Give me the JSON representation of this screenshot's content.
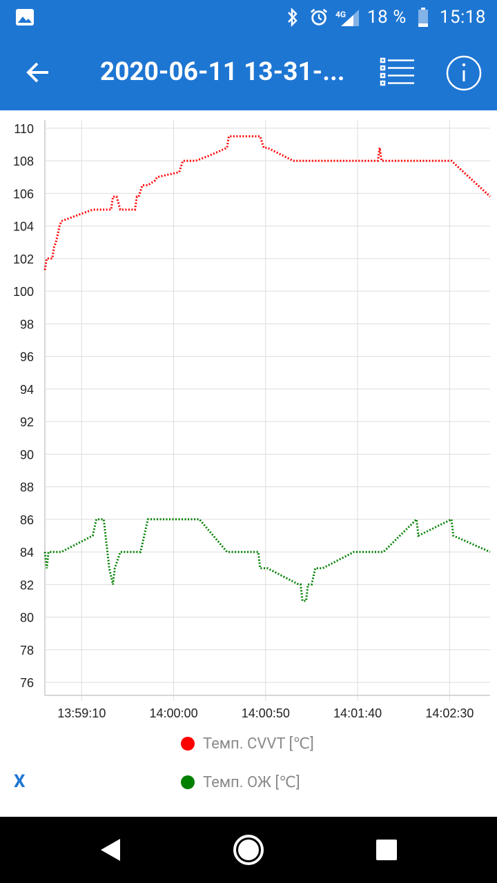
{
  "status_bar": {
    "network": "4G",
    "battery": "18 %",
    "time": "15:18"
  },
  "app_bar": {
    "title": "2020-06-11 13-31-..."
  },
  "chart_data": {
    "type": "line",
    "y_ticks": [
      "110",
      "108",
      "106",
      "104",
      "102",
      "100",
      "98",
      "96",
      "94",
      "92",
      "90",
      "88",
      "86",
      "84",
      "82",
      "80",
      "78",
      "76"
    ],
    "x_ticks": [
      "13:59:10",
      "14:00:00",
      "14:00:50",
      "14:01:40",
      "14:02:30"
    ],
    "ylim": [
      75.2,
      110.5
    ],
    "x_unit": "seconds from 13:58:50",
    "xlim": [
      0,
      242
    ],
    "grid": true,
    "series": [
      {
        "name": "Темп. CVVT [℃]",
        "color": "#ff0000",
        "x": [
          0,
          1,
          2,
          4,
          5,
          6,
          7,
          8,
          9,
          26,
          36,
          37,
          39,
          41,
          49,
          50,
          51,
          53,
          55,
          56,
          60,
          61,
          73,
          75,
          79,
          81,
          82,
          89,
          99,
          100,
          101,
          117,
          119,
          121,
          135,
          136,
          150,
          177,
          181,
          182,
          183,
          184,
          185,
          220,
          221,
          242
        ],
        "y": [
          101.3,
          102.0,
          102.0,
          102.0,
          102.7,
          103.0,
          103.5,
          104.0,
          104.3,
          105.0,
          105.0,
          105.8,
          105.8,
          105.0,
          105.0,
          105.8,
          105.8,
          106.5,
          106.5,
          106.5,
          106.8,
          107.0,
          107.3,
          108.0,
          108.0,
          108.0,
          108.0,
          108.3,
          108.8,
          109.5,
          109.5,
          109.5,
          108.8,
          108.8,
          108.0,
          108.0,
          108.0,
          108.0,
          108.0,
          108.8,
          108.0,
          108.0,
          108.0,
          108.0,
          108.0,
          105.8
        ]
      },
      {
        "name": "Темп. ОЖ [℃]",
        "color": "#008000",
        "x": [
          0,
          1,
          2,
          4,
          6,
          9,
          26,
          28,
          32,
          34,
          35,
          37,
          38,
          41,
          52,
          54,
          56,
          69,
          84,
          99,
          116,
          117,
          119,
          121,
          138,
          139,
          140,
          141,
          142,
          143,
          145,
          147,
          149,
          151,
          168,
          184,
          202,
          203,
          221,
          222,
          242
        ],
        "y": [
          84,
          83,
          84,
          84,
          84,
          84,
          85,
          86,
          86,
          84,
          83,
          82,
          83,
          84,
          84,
          85,
          86,
          86,
          86,
          84,
          84,
          83,
          83,
          83,
          82,
          82,
          81,
          81,
          81,
          82,
          82,
          83,
          83,
          83,
          84,
          84,
          86,
          85,
          86,
          85,
          84
        ]
      }
    ]
  },
  "legend": {
    "items": [
      {
        "label": "Темп. CVVT [℃]",
        "color": "#ff0000"
      },
      {
        "label": "Темп. ОЖ [℃]",
        "color": "#008000"
      }
    ],
    "toggle_label": "X"
  }
}
